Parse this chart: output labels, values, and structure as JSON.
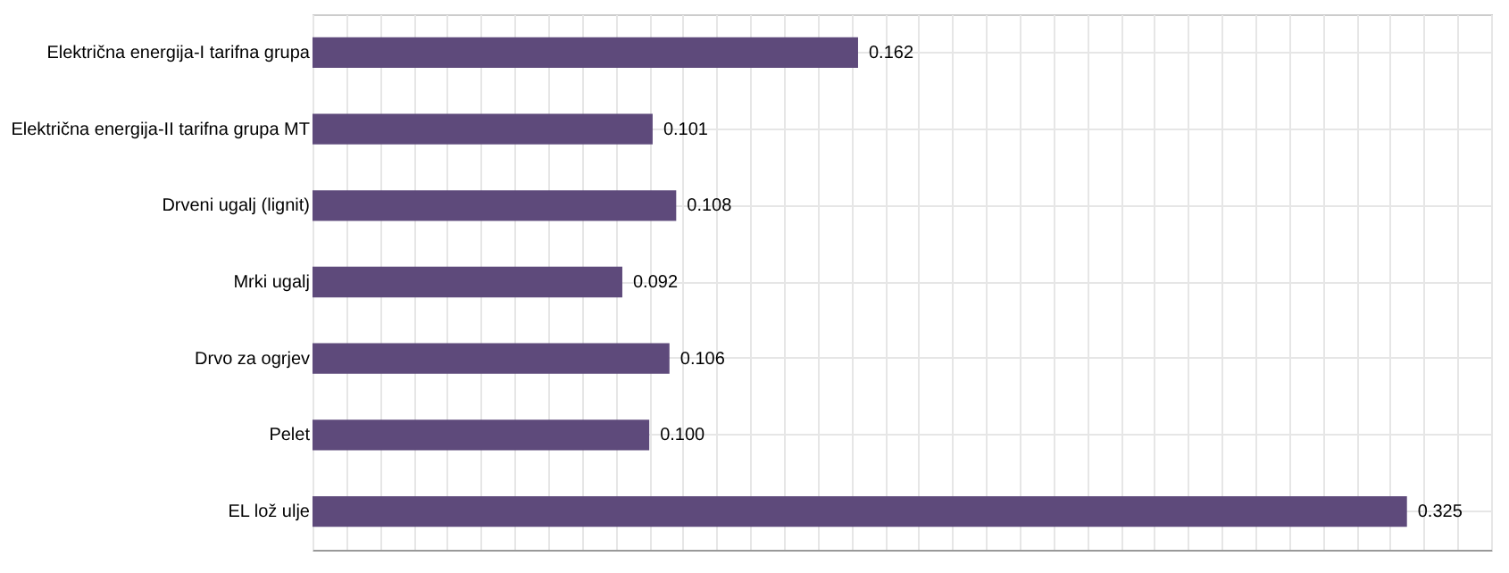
{
  "chart_data": {
    "type": "bar",
    "orientation": "horizontal",
    "categories": [
      "Električna energija-I tarifna grupa",
      "Električna energija-II tarifna grupa MT",
      "Drveni ugalj (lignit)",
      "Mrki ugalj",
      "Drvo za ogrjev",
      "Pelet",
      "EL lož ulje"
    ],
    "values": [
      0.162,
      0.101,
      0.108,
      0.092,
      0.106,
      0.1,
      0.325
    ],
    "value_labels": [
      "0.162",
      "0.101",
      "0.108",
      "0.092",
      "0.106",
      "0.100",
      "0.325"
    ],
    "color": "#5e4a7b",
    "grid": true
  }
}
